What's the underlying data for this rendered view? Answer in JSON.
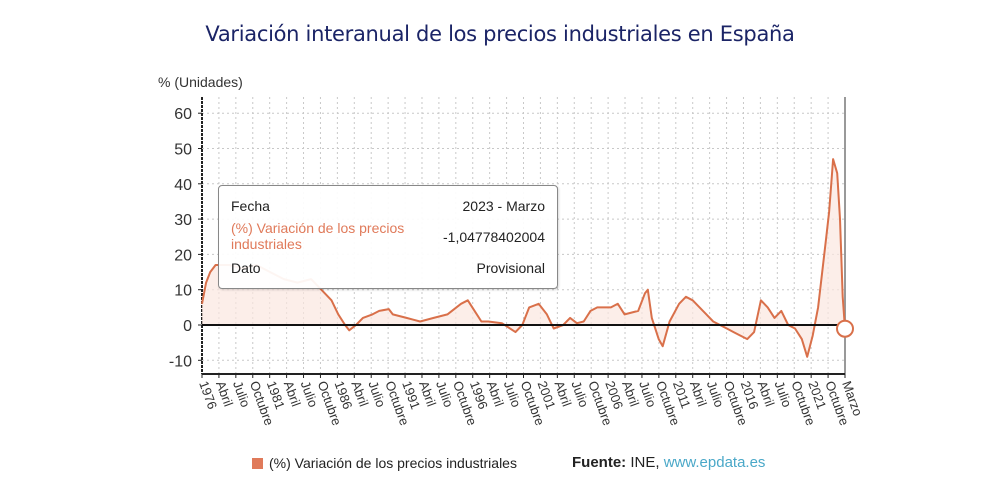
{
  "chart_data": {
    "type": "area",
    "title": "Variación interanual de los precios industriales en España",
    "ylabel": "% (Unidades)",
    "xlabel": "",
    "ylim": [
      -13,
      63
    ],
    "yticks": [
      60,
      50,
      40,
      30,
      20,
      10,
      0,
      -10
    ],
    "xlim": [
      1976.0,
      2023.17
    ],
    "grid": true,
    "legend_position": "bottom",
    "xtick_labels": [
      "1976",
      "Abril",
      "Julio",
      "Octubre",
      "1981",
      "Abril",
      "Julio",
      "Octubre",
      "1986",
      "Abril",
      "Julio",
      "Octubre",
      "1991",
      "Abril",
      "Julio",
      "Octubre",
      "1996",
      "Abril",
      "Julio",
      "Octubre",
      "2001",
      "Abril",
      "Julio",
      "Octubre",
      "2006",
      "Abril",
      "Julio",
      "Octubre",
      "2011",
      "Abril",
      "Julio",
      "Octubre",
      "2016",
      "Abril",
      "Julio",
      "Octubre",
      "2021",
      "Octubre",
      "Marzo"
    ],
    "series": [
      {
        "name": "(%) Variación de los precios industriales",
        "color": "#d9704a",
        "x": [
          1976.0,
          1976.3,
          1976.6,
          1977.0,
          1978.0,
          1979.0,
          1980.0,
          1981.0,
          1982.0,
          1983.0,
          1984.0,
          1985.0,
          1985.5,
          1986.0,
          1986.5,
          1986.8,
          1987.3,
          1987.8,
          1988.5,
          1989.0,
          1989.7,
          1990.0,
          1991.0,
          1991.5,
          1992.0,
          1993.0,
          1994.0,
          1995.0,
          1995.5,
          1996.0,
          1996.5,
          1997.0,
          1998.0,
          1999.0,
          1999.5,
          2000.0,
          2000.7,
          2001.3,
          2001.8,
          2002.5,
          2003.0,
          2003.5,
          2004.0,
          2004.5,
          2005.0,
          2006.0,
          2006.5,
          2007.0,
          2008.0,
          2008.5,
          2008.7,
          2009.0,
          2009.5,
          2009.8,
          2010.3,
          2011.0,
          2011.5,
          2012.0,
          2012.5,
          2013.0,
          2013.5,
          2014.0,
          2014.5,
          2015.0,
          2015.5,
          2016.0,
          2016.5,
          2017.0,
          2017.5,
          2018.0,
          2018.5,
          2019.0,
          2019.5,
          2020.0,
          2020.4,
          2020.8,
          2021.2,
          2021.5,
          2021.8,
          2022.0,
          2022.2,
          2022.3,
          2022.6,
          2022.8,
          2023.0,
          2023.17
        ],
        "values": [
          6,
          12,
          15,
          17,
          17,
          16,
          17,
          15,
          13,
          12,
          13,
          9,
          7,
          3,
          0,
          -1.5,
          0,
          2,
          3,
          4,
          4.5,
          3,
          2,
          1.5,
          1,
          2,
          3,
          6,
          7,
          4,
          1,
          1,
          0.5,
          -2,
          0,
          5,
          6,
          3,
          -1,
          0,
          2,
          0.5,
          1,
          4,
          5,
          5,
          6,
          3,
          4,
          9,
          10,
          2,
          -4,
          -6,
          1,
          6,
          8,
          7,
          5,
          3,
          1,
          0,
          -1,
          -2,
          -3,
          -4,
          -2,
          7,
          5,
          2,
          4,
          0,
          -1,
          -4,
          -9,
          -3,
          5,
          15,
          25,
          32,
          42,
          47,
          43,
          30,
          8,
          -1.05
        ]
      }
    ],
    "highlight_point": {
      "x": 2023.17,
      "value": -1.04778402004
    }
  },
  "tooltip": {
    "fecha_label": "Fecha",
    "fecha_value": "2023 - Marzo",
    "series_label": "(%) Variación de los precios industriales",
    "series_value": "-1,04778402004",
    "dato_label": "Dato",
    "dato_value": "Provisional"
  },
  "legend": {
    "label": "(%) Variación de los precios industriales"
  },
  "source": {
    "prefix": "Fuente:",
    "name": "INE,",
    "link": "www.epdata.es"
  }
}
